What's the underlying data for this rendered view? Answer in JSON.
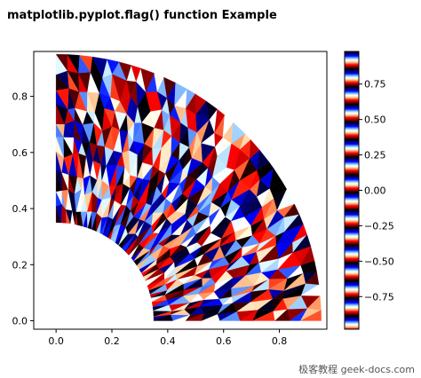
{
  "chart_data": {
    "type": "heatmap",
    "title": "matplotlib.pyplot.flag() function Example",
    "xlabel": "",
    "ylabel": "",
    "xlim": [
      -0.08,
      0.97
    ],
    "ylim": [
      -0.03,
      0.96
    ],
    "x_ticks": [
      0.0,
      0.2,
      0.4,
      0.6,
      0.8
    ],
    "y_ticks": [
      0.0,
      0.2,
      0.4,
      0.6,
      0.8
    ],
    "x_tick_labels": [
      "0.0",
      "0.2",
      "0.4",
      "0.6",
      "0.8"
    ],
    "y_tick_labels": [
      "0.0",
      "0.2",
      "0.4",
      "0.6",
      "0.8"
    ],
    "colormap": "flag",
    "colorbar": {
      "range": [
        -0.98,
        0.98
      ],
      "ticks": [
        0.75,
        0.5,
        0.25,
        0.0,
        -0.25,
        -0.5,
        -0.75
      ],
      "tick_labels": [
        "0.75",
        "0.50",
        "0.25",
        "0.00",
        "−0.25",
        "−0.50",
        "−0.75"
      ]
    },
    "domain": {
      "shape": "annular sector",
      "inner_radius": 0.35,
      "outer_radius": 0.95,
      "angle_start_deg": 0,
      "angle_end_deg": 90
    },
    "grid": false
  },
  "watermark": "极客教程 geek-docs.com",
  "colors": {
    "flag_red": "#ff0000",
    "flag_white": "#ffffff",
    "flag_blue": "#0000ff",
    "flag_black": "#000000"
  }
}
